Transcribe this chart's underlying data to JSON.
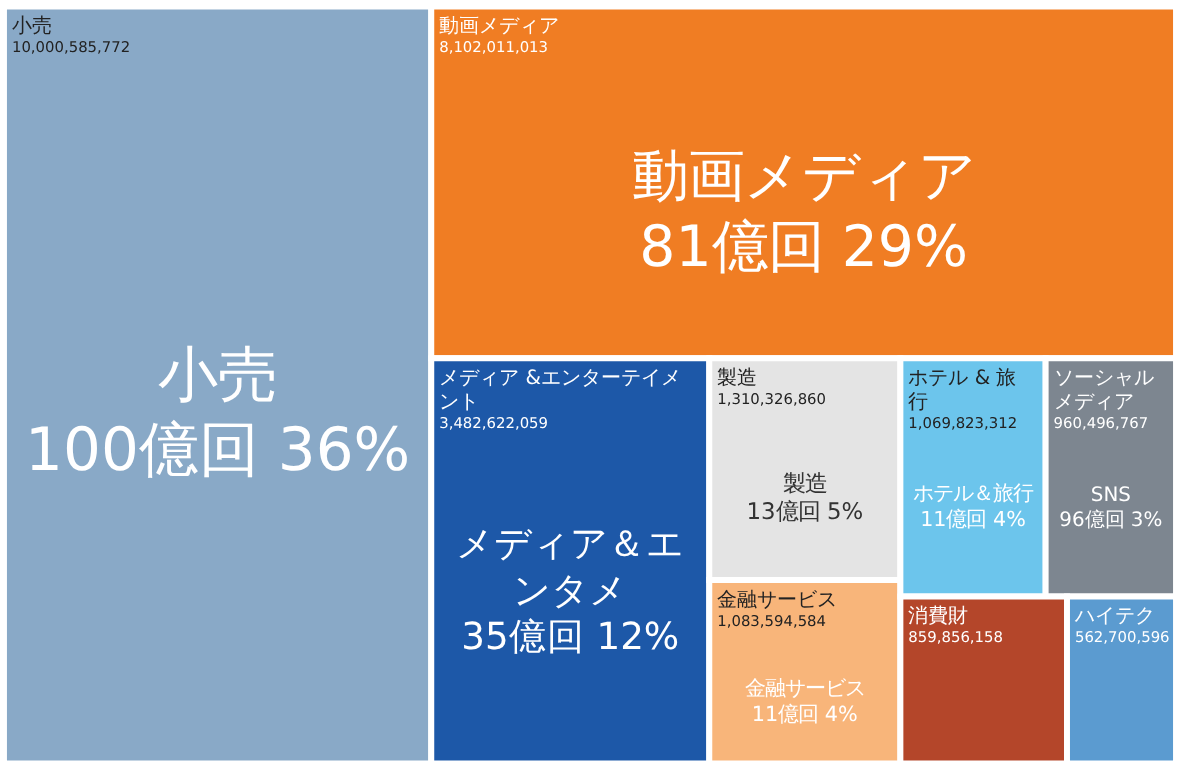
{
  "chart_data": {
    "type": "other",
    "categories": [
      "小売",
      "動画メディア",
      "メディア &エンターテイメント",
      "製造",
      "金融サービス",
      "ホテル & 旅行",
      "ソーシャルメディア",
      "消費財",
      "ハイテク"
    ],
    "values": [
      10000585772,
      8102011013,
      3482622059,
      1310326860,
      1083594584,
      1069823312,
      960496767,
      859856158,
      562700596
    ],
    "value_labels": [
      "10,000,585,772",
      "8,102,011,013",
      "3,482,622,059",
      "1,310,326,860",
      "1,083,594,584",
      "1,069,823,312",
      "960,496,767",
      "859,856,158",
      "562,700,596"
    ],
    "colors": [
      "#89a9c7",
      "#f07d23",
      "#1d58a8",
      "#e4e4e4",
      "#f8b57a",
      "#6cc5ec",
      "#7d8690",
      "#b4462a",
      "#5b9bd0"
    ],
    "annotations": [
      {
        "text": "小売\n100億回 36%",
        "x": "小売"
      },
      {
        "text": "動画メディア\n81億回 29%",
        "x": "動画メディア"
      },
      {
        "text": "メディア＆エンタメ\n35億回 12%",
        "x": "メディア &エンターテイメント"
      },
      {
        "text": "製造\n13億回 5%",
        "x": "製造"
      },
      {
        "text": "金融サービス\n11億回 4%",
        "x": "金融サービス"
      },
      {
        "text": "ホテル＆旅行\n11億回 4%",
        "x": "ホテル & 旅行"
      },
      {
        "text": "SNS\n96億回 3%",
        "x": "ソーシャルメディア"
      }
    ]
  }
}
